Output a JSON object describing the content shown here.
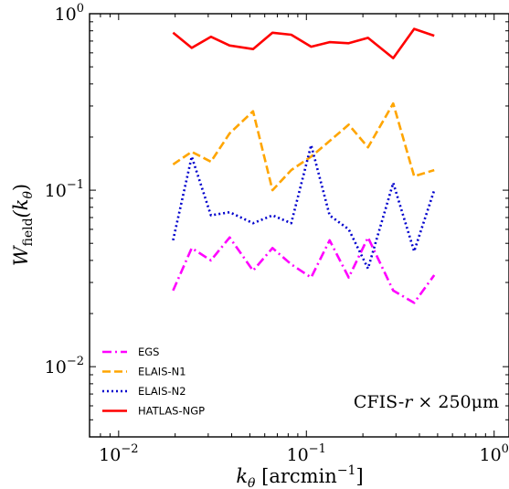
{
  "chart_data": {
    "type": "line",
    "xlabel": {
      "main": "k",
      "sub": "θ",
      "unit_open": " [arcmin",
      "exp": "−1",
      "unit_close": "]"
    },
    "ylabel": {
      "main": "W",
      "sub": "field",
      "arg_open": "(k",
      "arg_sub": "θ",
      "arg_close": ")"
    },
    "xscale": "log",
    "yscale": "log",
    "xlim": [
      0.007,
      1.2
    ],
    "ylim": [
      0.004,
      1.0
    ],
    "xticks": [
      {
        "value": 0.01,
        "base": "10",
        "exp": "−2"
      },
      {
        "value": 0.1,
        "base": "10",
        "exp": "−1"
      },
      {
        "value": 1,
        "base": "10",
        "exp": "0"
      }
    ],
    "yticks": [
      {
        "value": 0.01,
        "base": "10",
        "exp": "−2"
      },
      {
        "value": 0.1,
        "base": "10",
        "exp": "−1"
      },
      {
        "value": 1,
        "base": "10",
        "exp": "0"
      }
    ],
    "grid": false,
    "legend_position": "lower-left",
    "annotation": {
      "prefix": "CFIS-",
      "italic": "r",
      "suffix": " × 250μm"
    },
    "x": [
      0.0195,
      0.0245,
      0.031,
      0.039,
      0.052,
      0.066,
      0.083,
      0.106,
      0.133,
      0.168,
      0.213,
      0.29,
      0.375,
      0.48
    ],
    "series": [
      {
        "name": "EGS",
        "color": "#ff00ff",
        "dash": "dashdot",
        "values": [
          0.027,
          0.047,
          0.04,
          0.054,
          0.035,
          0.047,
          0.038,
          0.032,
          0.052,
          0.032,
          0.054,
          0.027,
          0.023,
          0.033
        ]
      },
      {
        "name": "ELAIS-N1",
        "color": "#ffa500",
        "dash": "dashed",
        "values": [
          0.14,
          0.165,
          0.145,
          0.21,
          0.28,
          0.1,
          0.13,
          0.155,
          0.19,
          0.235,
          0.175,
          0.31,
          0.12,
          0.13
        ]
      },
      {
        "name": "ELAIS-N2",
        "color": "#0000cd",
        "dash": "dotted",
        "values": [
          0.052,
          0.155,
          0.072,
          0.075,
          0.065,
          0.072,
          0.065,
          0.18,
          0.072,
          0.06,
          0.036,
          0.11,
          0.045,
          0.1
        ]
      },
      {
        "name": "HATLAS-NGP",
        "color": "#ff0000",
        "dash": "solid",
        "values": [
          0.78,
          0.64,
          0.74,
          0.66,
          0.63,
          0.78,
          0.76,
          0.65,
          0.69,
          0.68,
          0.73,
          0.56,
          0.82,
          0.75
        ]
      }
    ]
  }
}
